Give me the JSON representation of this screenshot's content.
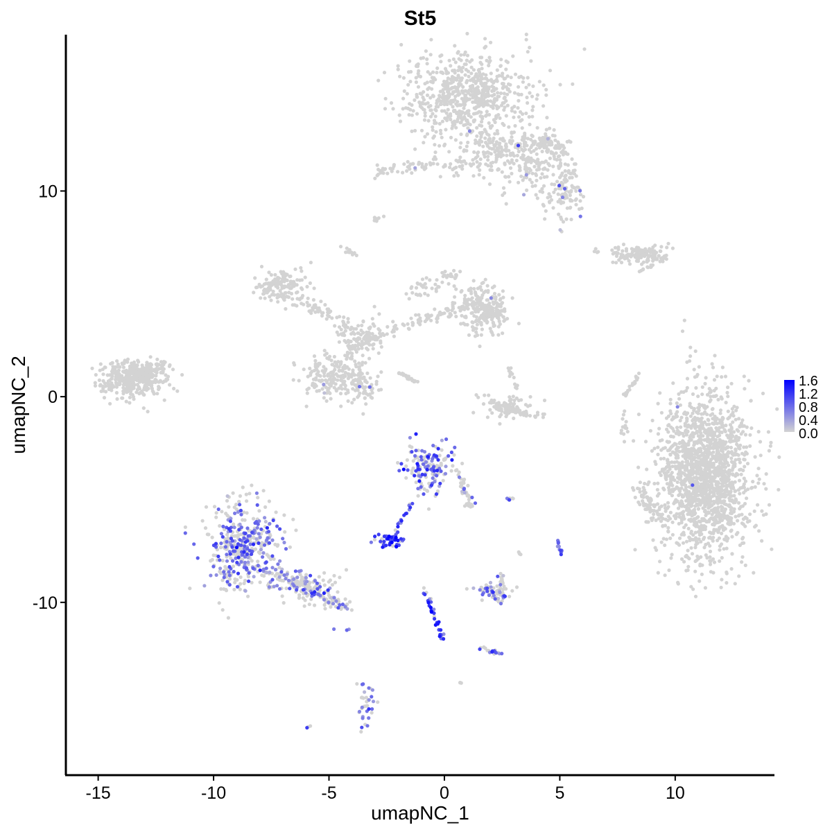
{
  "chart_data": {
    "type": "scatter",
    "title": "St5",
    "xlabel": "umapNC_1",
    "ylabel": "umapNC_2",
    "xlim": [
      -16.4,
      14.3
    ],
    "ylim": [
      -18.4,
      17.6
    ],
    "x_ticks": [
      -15,
      -10,
      -5,
      0,
      5,
      10
    ],
    "x_tick_labels": [
      "-15",
      "-10",
      "-5",
      "0",
      "5",
      "10"
    ],
    "y_ticks": [
      -10,
      0,
      10
    ],
    "y_tick_labels": [
      "-10",
      "0",
      "10"
    ],
    "grid": false,
    "legend": {
      "position": "right",
      "type": "colorbar",
      "low_color": "#d3d3d3",
      "high_color": "#0000ff",
      "range": [
        0.0,
        1.6
      ],
      "labels": [
        "1.6",
        "1.2",
        "0.8",
        "0.4",
        "0.0"
      ]
    },
    "point_color_rule": "grey #d3d3d3 for expression 0.0, blending to blue #0000ff at 1.6",
    "clusters": [
      {
        "cx": 11.3,
        "cy": -3.8,
        "sx": 1.0,
        "sy": 2.0,
        "n": 1700,
        "expressed_fraction": 0.003,
        "mean_expr": 0.5,
        "shape": "ellipse"
      },
      {
        "cx": 1.0,
        "cy": 14.5,
        "sx": 1.4,
        "sy": 1.1,
        "n": 700,
        "expressed_fraction": 0.002,
        "mean_expr": 0.5,
        "shape": "ellipse"
      },
      {
        "cx": 3.6,
        "cy": 11.5,
        "sx": 0.9,
        "sy": 0.8,
        "n": 220,
        "expressed_fraction": 0.01,
        "mean_expr": 0.5,
        "shape": "ellipse"
      },
      {
        "cx": 5.2,
        "cy": 10.0,
        "sx": 0.5,
        "sy": 0.6,
        "n": 100,
        "expressed_fraction": 0.05,
        "mean_expr": 0.6,
        "shape": "ellipse"
      },
      {
        "cx": -13.5,
        "cy": 0.9,
        "sx": 0.7,
        "sy": 0.45,
        "n": 380,
        "expressed_fraction": 0.0,
        "mean_expr": 0.0,
        "shape": "ellipse"
      },
      {
        "cx": -7.0,
        "cy": 5.5,
        "sx": 0.5,
        "sy": 0.4,
        "n": 110,
        "expressed_fraction": 0.0,
        "mean_expr": 0.0,
        "shape": "ellipse"
      },
      {
        "cx": 1.5,
        "cy": 4.5,
        "sx": 0.6,
        "sy": 0.6,
        "n": 150,
        "expressed_fraction": 0.005,
        "mean_expr": 0.5,
        "shape": "ellipse"
      },
      {
        "cx": 2.0,
        "cy": 4.0,
        "sx": 0.4,
        "sy": 0.5,
        "n": 100,
        "expressed_fraction": 0.01,
        "mean_expr": 0.5,
        "shape": "ellipse"
      },
      {
        "cx": -5.0,
        "cy": 1.0,
        "sx": 0.55,
        "sy": 0.5,
        "n": 150,
        "expressed_fraction": 0.01,
        "mean_expr": 0.5,
        "shape": "ellipse"
      },
      {
        "cx": -3.7,
        "cy": 0.7,
        "sx": 0.45,
        "sy": 0.5,
        "n": 110,
        "expressed_fraction": 0.02,
        "mean_expr": 0.5,
        "shape": "ellipse"
      },
      {
        "cx": -3.5,
        "cy": 3.0,
        "sx": 0.35,
        "sy": 0.5,
        "n": 70,
        "expressed_fraction": 0.0,
        "mean_expr": 0.0,
        "shape": "ellipse"
      },
      {
        "cx": 8.5,
        "cy": 6.9,
        "sx": 0.6,
        "sy": 0.25,
        "n": 100,
        "expressed_fraction": 0.0,
        "mean_expr": 0.0,
        "shape": "ellipse"
      },
      {
        "cx": 2.8,
        "cy": -0.5,
        "sx": 0.55,
        "sy": 0.3,
        "n": 80,
        "expressed_fraction": 0.0,
        "mean_expr": 0.0,
        "shape": "ellipse"
      },
      {
        "cx": -8.8,
        "cy": -7.3,
        "sx": 0.8,
        "sy": 1.1,
        "n": 420,
        "expressed_fraction": 0.42,
        "mean_expr": 0.75,
        "shape": "ellipse"
      },
      {
        "cx": -6.0,
        "cy": -9.2,
        "sx": 0.7,
        "sy": 0.5,
        "n": 100,
        "expressed_fraction": 0.3,
        "mean_expr": 0.7,
        "shape": "ellipse"
      },
      {
        "cx": -0.7,
        "cy": -3.5,
        "sx": 0.55,
        "sy": 0.6,
        "n": 150,
        "expressed_fraction": 0.55,
        "mean_expr": 0.9,
        "shape": "ellipse"
      },
      {
        "cx": -2.4,
        "cy": -7.0,
        "sx": 0.3,
        "sy": 0.2,
        "n": 45,
        "expressed_fraction": 0.6,
        "mean_expr": 1.2,
        "shape": "ellipse"
      },
      {
        "cx": 2.2,
        "cy": -9.5,
        "sx": 0.4,
        "sy": 0.25,
        "n": 60,
        "expressed_fraction": 0.45,
        "mean_expr": 0.7,
        "shape": "ellipse"
      },
      {
        "cx": -3.4,
        "cy": -14.8,
        "sx": 0.2,
        "sy": 0.5,
        "n": 35,
        "expressed_fraction": 0.4,
        "mean_expr": 0.7,
        "shape": "ellipse"
      },
      {
        "x0": -14.8,
        "y0": 0.6,
        "x1": -12.0,
        "y1": 1.6,
        "n": 60,
        "jitter": 0.35,
        "expressed_fraction": 0.0,
        "mean_expr": 0.0,
        "shape": "line"
      },
      {
        "x0": -8.0,
        "y0": 5.5,
        "x1": -4.5,
        "y1": 3.8,
        "n": 80,
        "jitter": 0.35,
        "expressed_fraction": 0.0,
        "mean_expr": 0.0,
        "shape": "line"
      },
      {
        "x0": -4.5,
        "y0": 3.8,
        "x1": -3.8,
        "y1": 1.5,
        "n": 50,
        "jitter": 0.3,
        "expressed_fraction": 0.0,
        "mean_expr": 0.0,
        "shape": "line"
      },
      {
        "x0": -4.0,
        "y0": 2.5,
        "x1": -1.0,
        "y1": 3.8,
        "n": 60,
        "jitter": 0.3,
        "expressed_fraction": 0.0,
        "mean_expr": 0.0,
        "shape": "line"
      },
      {
        "x0": -1.0,
        "y0": 3.8,
        "x1": 1.5,
        "y1": 4.5,
        "n": 50,
        "jitter": 0.3,
        "expressed_fraction": 0.0,
        "mean_expr": 0.0,
        "shape": "line"
      },
      {
        "x0": -1.5,
        "y0": 5.0,
        "x1": 0.5,
        "y1": 6.0,
        "n": 50,
        "jitter": 0.35,
        "expressed_fraction": 0.0,
        "mean_expr": 0.0,
        "shape": "line"
      },
      {
        "x0": -2.0,
        "y0": 1.2,
        "x1": -1.2,
        "y1": 0.7,
        "n": 25,
        "jitter": 0.08,
        "expressed_fraction": 0.0,
        "mean_expr": 0.0,
        "shape": "line"
      },
      {
        "x0": -3.8,
        "y0": 6.8,
        "x1": -4.5,
        "y1": 7.3,
        "n": 12,
        "jitter": 0.1,
        "expressed_fraction": 0.0,
        "mean_expr": 0.0,
        "shape": "line"
      },
      {
        "x0": -3.0,
        "y0": 8.6,
        "x1": -2.6,
        "y1": 8.8,
        "n": 8,
        "jitter": 0.08,
        "expressed_fraction": 0.0,
        "mean_expr": 0.0,
        "shape": "line"
      },
      {
        "x0": -3.0,
        "y0": 11.0,
        "x1": 0.0,
        "y1": 11.3,
        "n": 50,
        "jitter": 0.35,
        "expressed_fraction": 0.04,
        "mean_expr": 0.7,
        "shape": "line"
      },
      {
        "x0": 0.0,
        "y0": 11.3,
        "x1": 3.0,
        "y1": 12.0,
        "n": 60,
        "jitter": 0.5,
        "expressed_fraction": 0.0,
        "mean_expr": 0.0,
        "shape": "line"
      },
      {
        "x0": 1.5,
        "y0": 12.5,
        "x1": 2.5,
        "y1": 12.0,
        "n": 40,
        "jitter": 0.4,
        "expressed_fraction": 0.0,
        "mean_expr": 0.0,
        "shape": "line"
      },
      {
        "x0": 3.5,
        "y0": 12.5,
        "x1": 5.5,
        "y1": 12.0,
        "n": 60,
        "jitter": 0.4,
        "expressed_fraction": 0.0,
        "mean_expr": 0.0,
        "shape": "line"
      },
      {
        "x0": 6.5,
        "y0": 7.1,
        "x1": 9.8,
        "y1": 6.7,
        "n": 50,
        "jitter": 0.15,
        "expressed_fraction": 0.0,
        "mean_expr": 0.0,
        "shape": "line"
      },
      {
        "x0": 8.3,
        "y0": 6.0,
        "x1": 9.0,
        "y1": 6.4,
        "n": 10,
        "jitter": 0.08,
        "expressed_fraction": 0.0,
        "mean_expr": 0.0,
        "shape": "line"
      },
      {
        "x0": 2.0,
        "y0": -0.3,
        "x1": 4.2,
        "y1": -1.0,
        "n": 40,
        "jitter": 0.2,
        "expressed_fraction": 0.0,
        "mean_expr": 0.0,
        "shape": "line"
      },
      {
        "x0": 2.8,
        "y0": 1.5,
        "x1": 3.1,
        "y1": 0.5,
        "n": 12,
        "jitter": 0.12,
        "expressed_fraction": 0.0,
        "mean_expr": 0.0,
        "shape": "line"
      },
      {
        "x0": 7.8,
        "y0": 0.0,
        "x1": 8.5,
        "y1": 1.2,
        "n": 20,
        "jitter": 0.1,
        "expressed_fraction": 0.0,
        "mean_expr": 0.0,
        "shape": "line"
      },
      {
        "x0": 7.8,
        "y0": -0.5,
        "x1": 7.8,
        "y1": -2.5,
        "n": 14,
        "jitter": 0.12,
        "expressed_fraction": 0.0,
        "mean_expr": 0.0,
        "shape": "line"
      },
      {
        "x0": 8.3,
        "y0": -4.5,
        "x1": 9.5,
        "y1": -6.0,
        "n": 60,
        "jitter": 0.35,
        "expressed_fraction": 0.01,
        "mean_expr": 0.5,
        "shape": "line"
      },
      {
        "x0": -7.5,
        "y0": -8.5,
        "x1": -4.2,
        "y1": -10.2,
        "n": 110,
        "jitter": 0.4,
        "expressed_fraction": 0.3,
        "mean_expr": 0.7,
        "shape": "line"
      },
      {
        "x0": 0.5,
        "y0": -3.5,
        "x1": 1.2,
        "y1": -5.5,
        "n": 40,
        "jitter": 0.2,
        "expressed_fraction": 0.15,
        "mean_expr": 0.6,
        "shape": "line"
      },
      {
        "x0": -1.2,
        "y0": -4.8,
        "x1": -2.2,
        "y1": -6.8,
        "n": 18,
        "jitter": 0.1,
        "expressed_fraction": 0.7,
        "mean_expr": 0.9,
        "shape": "line"
      },
      {
        "x0": -0.9,
        "y0": -9.3,
        "x1": 0.0,
        "y1": -12.0,
        "n": 35,
        "jitter": 0.1,
        "expressed_fraction": 0.8,
        "mean_expr": 1.0,
        "shape": "line"
      },
      {
        "x0": 1.5,
        "y0": -12.2,
        "x1": 2.5,
        "y1": -12.5,
        "n": 18,
        "jitter": 0.12,
        "expressed_fraction": 0.5,
        "mean_expr": 0.8,
        "shape": "line"
      },
      {
        "x0": 2.5,
        "y0": -8.7,
        "x1": 2.5,
        "y1": -9.2,
        "n": 10,
        "jitter": 0.12,
        "expressed_fraction": 0.3,
        "mean_expr": 0.6,
        "shape": "line"
      },
      {
        "x0": 4.9,
        "y0": -7.0,
        "x1": 5.1,
        "y1": -7.7,
        "n": 12,
        "jitter": 0.08,
        "expressed_fraction": 0.9,
        "mean_expr": 0.8,
        "shape": "line"
      },
      {
        "x0": 2.7,
        "y0": -5.0,
        "x1": 3.0,
        "y1": -4.9,
        "n": 8,
        "jitter": 0.06,
        "expressed_fraction": 0.5,
        "mean_expr": 0.8,
        "shape": "line"
      },
      {
        "x0": 3.2,
        "y0": -7.5,
        "x1": 3.3,
        "y1": -7.7,
        "n": 4,
        "jitter": 0.05,
        "expressed_fraction": 0.0,
        "mean_expr": 0.0,
        "shape": "line"
      },
      {
        "x0": -4.8,
        "y0": -11.3,
        "x1": -4.0,
        "y1": -11.4,
        "n": 3,
        "jitter": 0.05,
        "expressed_fraction": 0.5,
        "mean_expr": 0.8,
        "shape": "line"
      },
      {
        "x0": -6.0,
        "y0": -16.1,
        "x1": -5.8,
        "y1": -16.0,
        "n": 3,
        "jitter": 0.05,
        "expressed_fraction": 0.6,
        "mean_expr": 0.9,
        "shape": "line"
      },
      {
        "x0": 0.6,
        "y0": -13.8,
        "x1": 0.7,
        "y1": -13.9,
        "n": 3,
        "jitter": 0.05,
        "expressed_fraction": 0.0,
        "mean_expr": 0.0,
        "shape": "line"
      }
    ]
  }
}
